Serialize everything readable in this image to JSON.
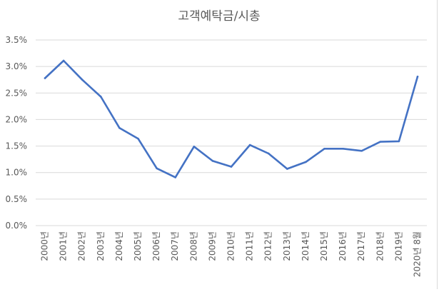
{
  "chart_data": {
    "type": "line",
    "title": "고객예탁금/시총",
    "xlabel": "",
    "ylabel": "",
    "categories": [
      "2000년",
      "2001년",
      "2002년",
      "2003년",
      "2004년",
      "2005년",
      "2006년",
      "2007년",
      "2008년",
      "2009년",
      "2010년",
      "2011년",
      "2012년",
      "2013년",
      "2014년",
      "2015년",
      "2016년",
      "2017년",
      "2018년",
      "2019년",
      "2020년 8월"
    ],
    "series": [
      {
        "values": [
          2.78,
          3.11,
          2.75,
          2.43,
          1.84,
          1.64,
          1.08,
          0.91,
          1.49,
          1.22,
          1.11,
          1.52,
          1.36,
          1.07,
          1.2,
          1.45,
          1.45,
          1.41,
          1.58,
          1.59,
          2.81
        ]
      }
    ],
    "yticks": [
      "0.0%",
      "0.5%",
      "1.0%",
      "1.5%",
      "2.0%",
      "2.5%",
      "3.0%",
      "3.5%"
    ],
    "ylim": [
      0,
      3.5
    ],
    "grid": true,
    "legend": "none",
    "colors": {
      "line": "#4472c4",
      "grid": "#d9d9d9",
      "text": "#595959"
    }
  }
}
